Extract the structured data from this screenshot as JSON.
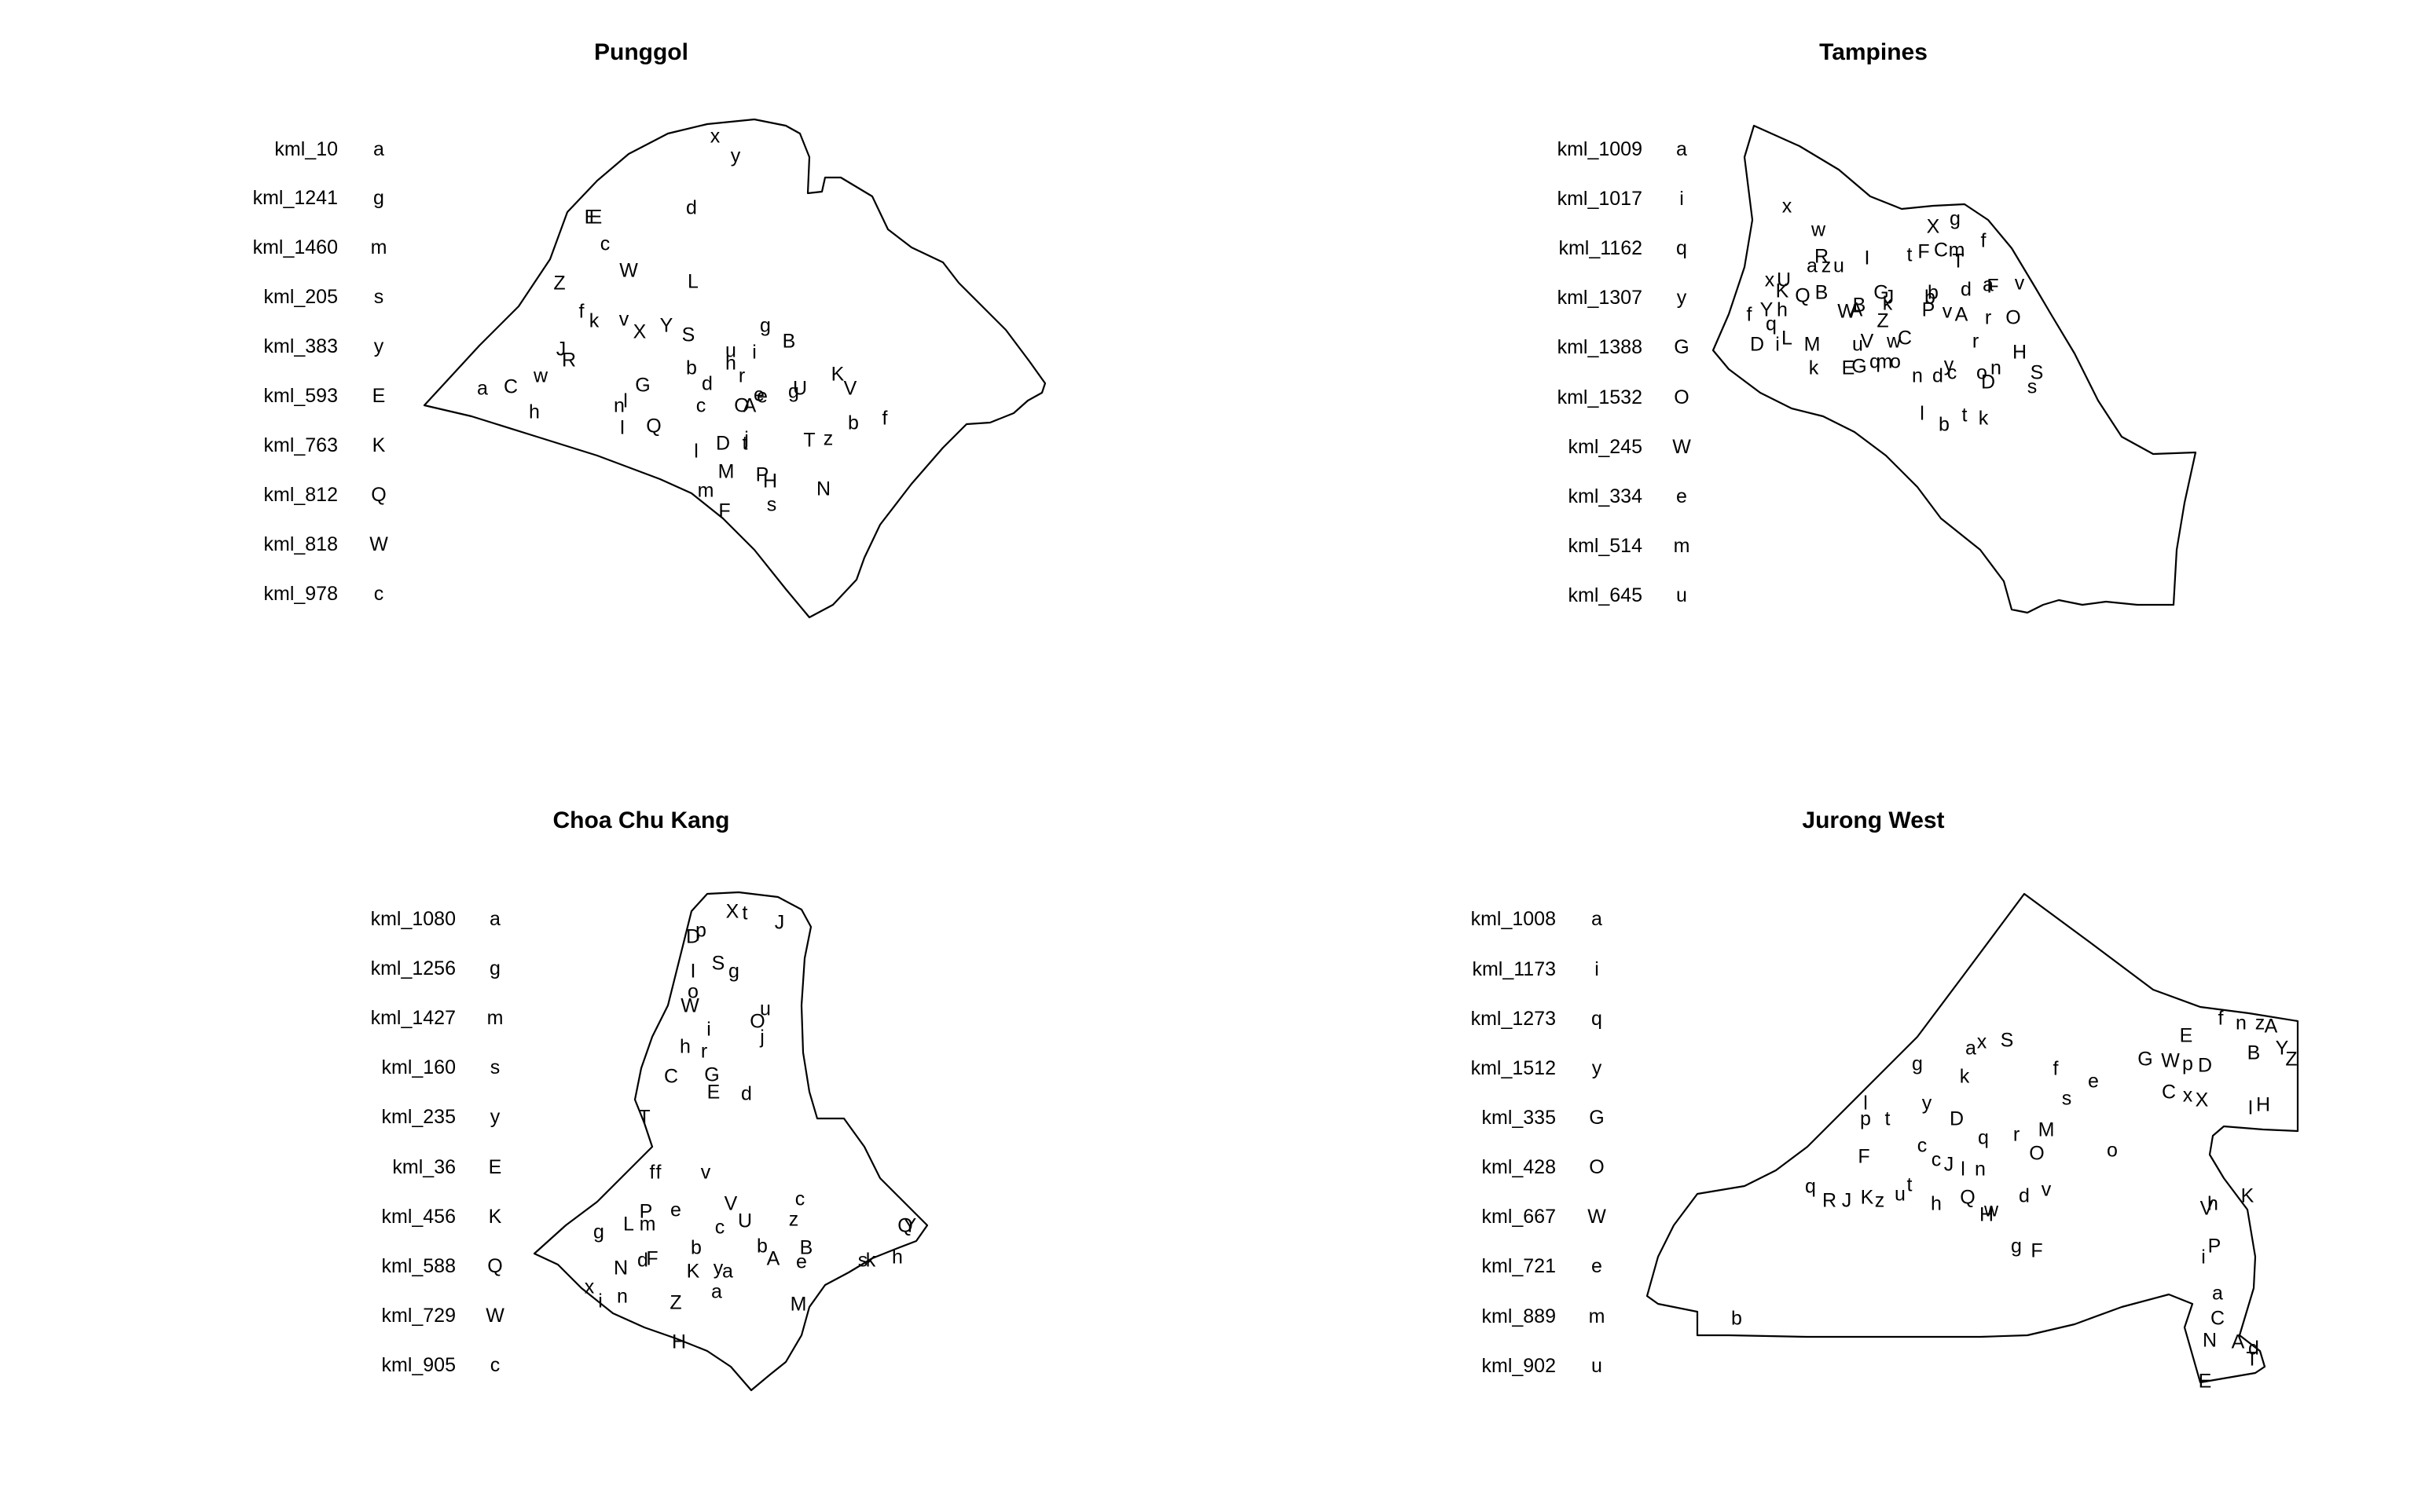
{
  "panels": [
    {
      "name": "Punggol",
      "legend": [
        {
          "key": "kml_10",
          "code": "a"
        },
        {
          "key": "kml_1241",
          "code": "g"
        },
        {
          "key": "kml_1460",
          "code": "m"
        },
        {
          "key": "kml_205",
          "code": "s"
        },
        {
          "key": "kml_383",
          "code": "y"
        },
        {
          "key": "kml_593",
          "code": "E"
        },
        {
          "key": "kml_763",
          "code": "K"
        },
        {
          "key": "kml_812",
          "code": "Q"
        },
        {
          "key": "kml_818",
          "code": "W"
        },
        {
          "key": "kml_978",
          "code": "c"
        }
      ],
      "markers": "x y d E E c W Z L f k v X Y S g B J R u i h r b d G e U a C w h n l c O e A g K V I Q l D t j T z b f M P H m N F s"
    },
    {
      "name": "Tampines",
      "legend": [
        {
          "key": "kml_1009",
          "code": "a"
        },
        {
          "key": "kml_1017",
          "code": "i"
        },
        {
          "key": "kml_1162",
          "code": "q"
        },
        {
          "key": "kml_1307",
          "code": "y"
        },
        {
          "key": "kml_1388",
          "code": "G"
        },
        {
          "key": "kml_1532",
          "code": "O"
        },
        {
          "key": "kml_245",
          "code": "W"
        },
        {
          "key": "kml_334",
          "code": "e"
        },
        {
          "key": "kml_514",
          "code": "m"
        },
        {
          "key": "kml_645",
          "code": "u"
        }
      ],
      "markers": "x w X g f x U R a z u I t F C T m K Q B G b J d a F v f Y h q k b W A B Z P v A r O D i L M u V w C r H k E G q m o n d y n c o S D s l k b t"
    },
    {
      "name": "Choa Chu Kang",
      "legend": [
        {
          "key": "kml_1080",
          "code": "a"
        },
        {
          "key": "kml_1256",
          "code": "g"
        },
        {
          "key": "kml_1427",
          "code": "m"
        },
        {
          "key": "kml_160",
          "code": "s"
        },
        {
          "key": "kml_235",
          "code": "y"
        },
        {
          "key": "kml_36",
          "code": "E"
        },
        {
          "key": "kml_456",
          "code": "K"
        },
        {
          "key": "kml_588",
          "code": "Q"
        },
        {
          "key": "kml_729",
          "code": "W"
        },
        {
          "key": "kml_905",
          "code": "c"
        }
      ],
      "markers": "X t J D p I S g o W u O i j h r C G E d T f f v P e V c g L m c U z Q Y N l d F b b B A e s k h x i n Z M H K y a a"
    },
    {
      "name": "Jurong West",
      "legend": [
        {
          "key": "kml_1008",
          "code": "a"
        },
        {
          "key": "kml_1173",
          "code": "i"
        },
        {
          "key": "kml_1273",
          "code": "q"
        },
        {
          "key": "kml_1512",
          "code": "y"
        },
        {
          "key": "kml_335",
          "code": "G"
        },
        {
          "key": "kml_428",
          "code": "O"
        },
        {
          "key": "kml_667",
          "code": "W"
        },
        {
          "key": "kml_721",
          "code": "e"
        },
        {
          "key": "kml_889",
          "code": "m"
        },
        {
          "key": "kml_902",
          "code": "u"
        }
      ],
      "markers": "a x S g k f s e f n z A E B Z G W p D Y x X H I C y l p t D q r M O F c c J l n q R K J z u t h Q w d v H g F V h K i P a C N A d T E b o"
    }
  ]
}
